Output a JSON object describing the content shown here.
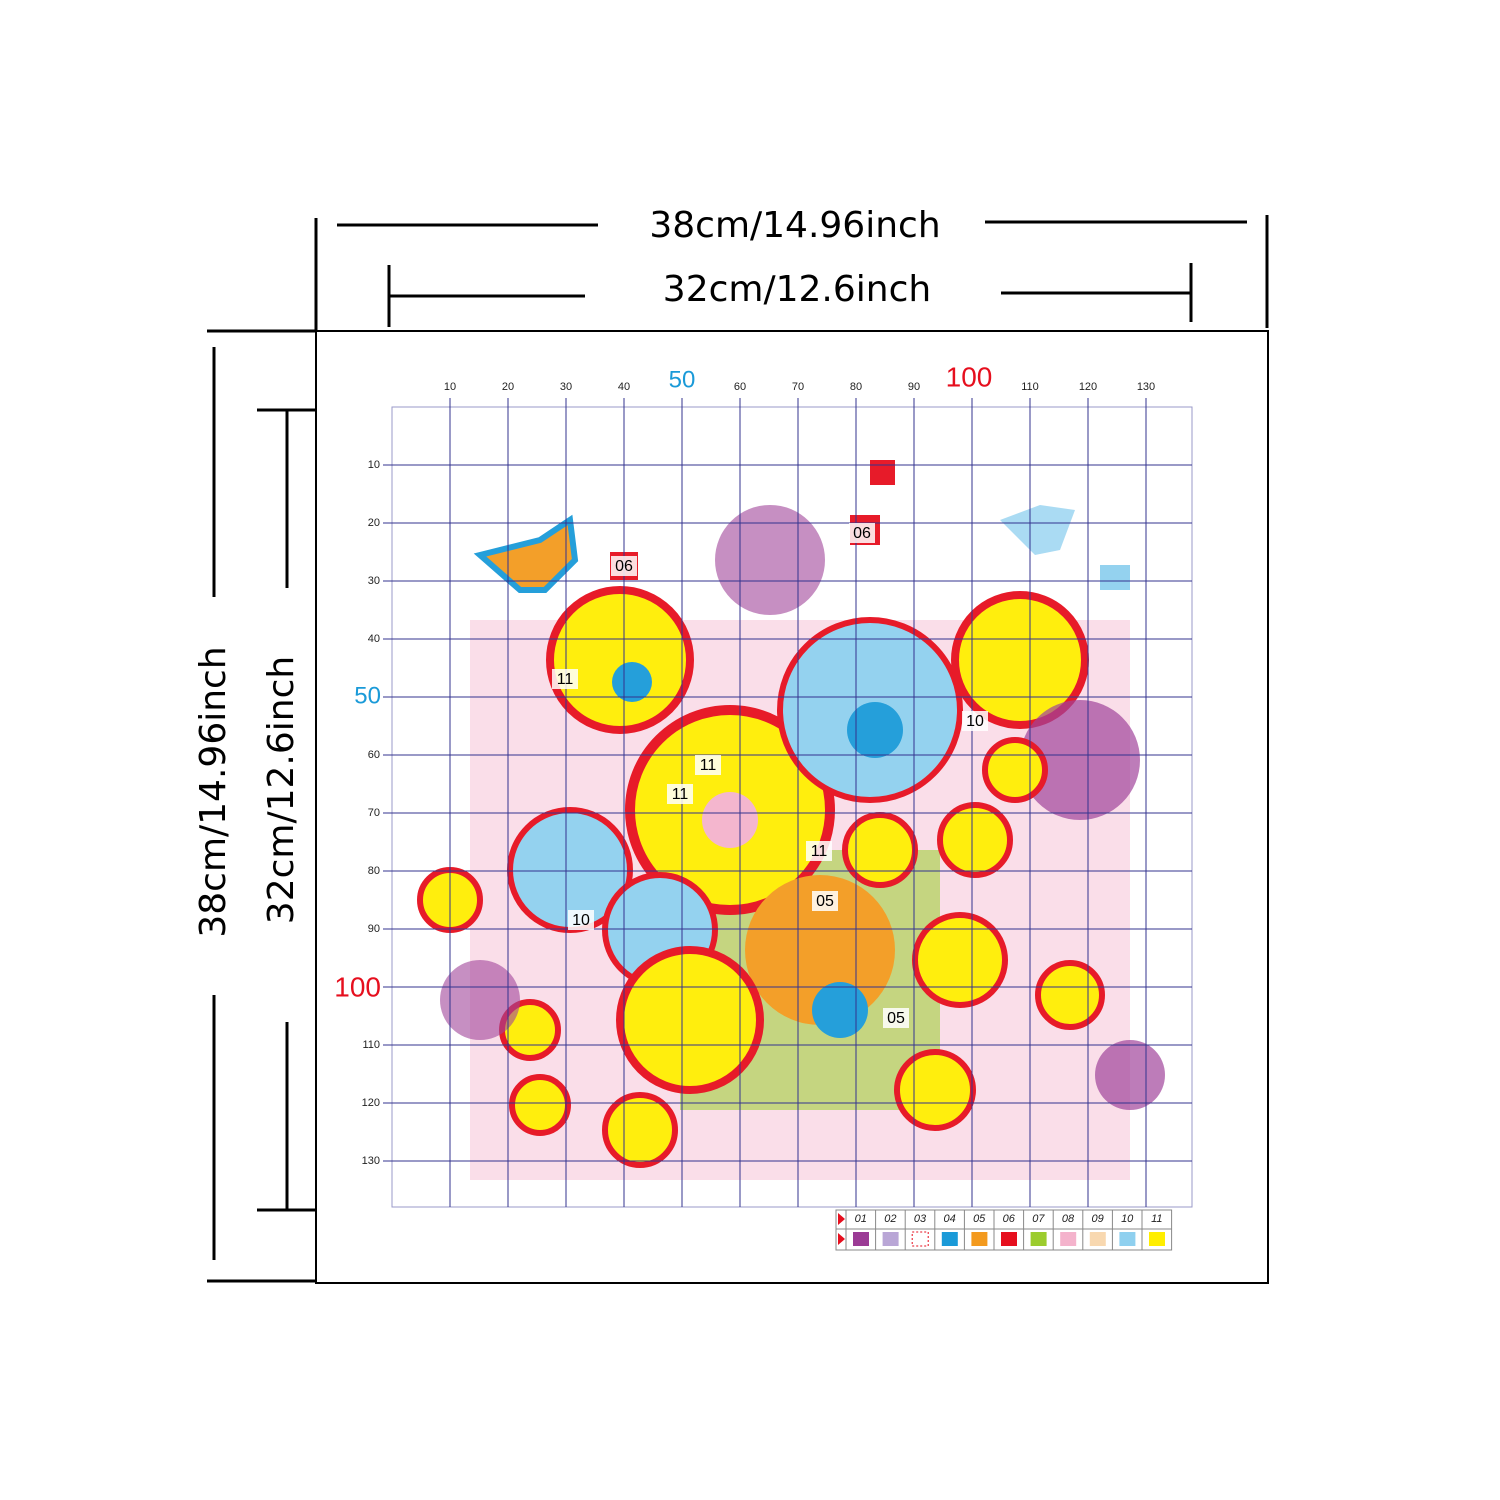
{
  "dimensions": {
    "outer_width": "38cm/14.96inch",
    "inner_width": "32cm/12.6inch",
    "outer_height": "38cm/14.96inch",
    "inner_height": "32cm/12.6inch"
  },
  "grid": {
    "x_labels": [
      "10",
      "20",
      "30",
      "40",
      "50",
      "60",
      "70",
      "80",
      "90",
      "100",
      "110",
      "120",
      "130"
    ],
    "y_labels": [
      "10",
      "20",
      "30",
      "40",
      "50",
      "60",
      "70",
      "80",
      "90",
      "100",
      "110",
      "120",
      "130"
    ]
  },
  "region_labels": [
    "06",
    "06",
    "11",
    "11",
    "11",
    "11",
    "10",
    "10",
    "05",
    "05"
  ],
  "legend": [
    {
      "code": "01",
      "color": "#9b3b95"
    },
    {
      "code": "02",
      "color": "#b9a6d6"
    },
    {
      "code": "03",
      "color": "#ffffff"
    },
    {
      "code": "04",
      "color": "#1a9ad8"
    },
    {
      "code": "05",
      "color": "#f39a1e"
    },
    {
      "code": "06",
      "color": "#e60f1e"
    },
    {
      "code": "07",
      "color": "#9ccc2e"
    },
    {
      "code": "08",
      "color": "#f4b3cc"
    },
    {
      "code": "09",
      "color": "#f8d8b0"
    },
    {
      "code": "10",
      "color": "#8fd0ef"
    },
    {
      "code": "11",
      "color": "#ffee00"
    }
  ]
}
